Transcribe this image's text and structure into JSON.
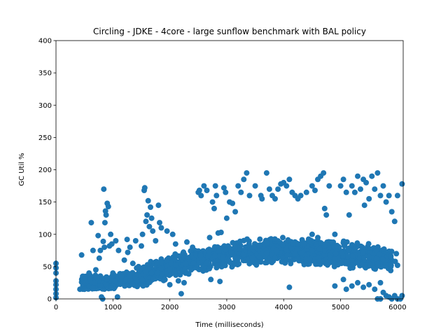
{
  "chart_data": {
    "type": "scatter",
    "title": "Circling - JDKE - 4core -  large sunflow benchmark with BAL policy",
    "xlabel": "Time (milliseconds)",
    "ylabel": "GC Util %",
    "xlim": [
      0,
      6100
    ],
    "ylim": [
      0,
      400
    ],
    "xticks": [
      "0",
      "1000",
      "2000",
      "3000",
      "4000",
      "5000",
      "6000"
    ],
    "yticks": [
      "0",
      "50",
      "100",
      "150",
      "200",
      "250",
      "300",
      "350",
      "400"
    ],
    "grid": false,
    "legend": "none",
    "marker_color": "#1f77b4",
    "series": [
      {
        "points": [
          [
            0,
            55
          ],
          [
            0,
            48
          ],
          [
            0,
            40
          ],
          [
            0,
            28
          ],
          [
            0,
            22
          ],
          [
            0,
            15
          ],
          [
            0,
            8
          ],
          [
            0,
            2
          ],
          [
            420,
            15
          ],
          [
            450,
            68
          ],
          [
            500,
            15
          ],
          [
            520,
            25
          ],
          [
            560,
            28
          ],
          [
            580,
            40
          ],
          [
            600,
            30
          ],
          [
            620,
            118
          ],
          [
            650,
            75
          ],
          [
            680,
            25
          ],
          [
            700,
            45
          ],
          [
            720,
            32
          ],
          [
            740,
            98
          ],
          [
            760,
            63
          ],
          [
            780,
            75
          ],
          [
            800,
            3
          ],
          [
            820,
            0
          ],
          [
            830,
            89
          ],
          [
            840,
            170
          ],
          [
            850,
            80
          ],
          [
            860,
            118
          ],
          [
            870,
            136
          ],
          [
            880,
            130
          ],
          [
            900,
            148
          ],
          [
            920,
            143
          ],
          [
            940,
            82
          ],
          [
            960,
            100
          ],
          [
            980,
            85
          ],
          [
            1000,
            40
          ],
          [
            1050,
            90
          ],
          [
            1080,
            3
          ],
          [
            1100,
            75
          ],
          [
            1150,
            35
          ],
          [
            1200,
            60
          ],
          [
            1250,
            92
          ],
          [
            1260,
            72
          ],
          [
            1300,
            80
          ],
          [
            1350,
            55
          ],
          [
            1400,
            90
          ],
          [
            1450,
            50
          ],
          [
            1500,
            82
          ],
          [
            1520,
            100
          ],
          [
            1550,
            168
          ],
          [
            1560,
            172
          ],
          [
            1580,
            120
          ],
          [
            1600,
            130
          ],
          [
            1620,
            152
          ],
          [
            1640,
            112
          ],
          [
            1660,
            142
          ],
          [
            1680,
            125
          ],
          [
            1700,
            105
          ],
          [
            1750,
            90
          ],
          [
            1800,
            145
          ],
          [
            1820,
            118
          ],
          [
            1850,
            110
          ],
          [
            1950,
            105
          ],
          [
            2000,
            22
          ],
          [
            2050,
            100
          ],
          [
            2100,
            85
          ],
          [
            2150,
            28
          ],
          [
            2200,
            8
          ],
          [
            2250,
            25
          ],
          [
            2300,
            88
          ],
          [
            2400,
            80
          ],
          [
            2500,
            165
          ],
          [
            2520,
            168
          ],
          [
            2550,
            160
          ],
          [
            2600,
            175
          ],
          [
            2650,
            168
          ],
          [
            2700,
            95
          ],
          [
            2720,
            30
          ],
          [
            2750,
            150
          ],
          [
            2780,
            140
          ],
          [
            2800,
            175
          ],
          [
            2820,
            160
          ],
          [
            2850,
            102
          ],
          [
            2880,
            27
          ],
          [
            2900,
            103
          ],
          [
            2950,
            172
          ],
          [
            2980,
            165
          ],
          [
            3000,
            125
          ],
          [
            3050,
            150
          ],
          [
            3100,
            148
          ],
          [
            3150,
            135
          ],
          [
            3200,
            175
          ],
          [
            3250,
            165
          ],
          [
            3300,
            185
          ],
          [
            3350,
            195
          ],
          [
            3400,
            160
          ],
          [
            3500,
            175
          ],
          [
            3600,
            160
          ],
          [
            3620,
            155
          ],
          [
            3700,
            195
          ],
          [
            3750,
            170
          ],
          [
            3800,
            160
          ],
          [
            3850,
            155
          ],
          [
            3900,
            170
          ],
          [
            3950,
            178
          ],
          [
            4000,
            180
          ],
          [
            4050,
            175
          ],
          [
            4100,
            185
          ],
          [
            4150,
            165
          ],
          [
            4200,
            160
          ],
          [
            4250,
            155
          ],
          [
            4300,
            160
          ],
          [
            4400,
            165
          ],
          [
            4500,
            175
          ],
          [
            4550,
            168
          ],
          [
            4600,
            185
          ],
          [
            4650,
            190
          ],
          [
            4700,
            195
          ],
          [
            4720,
            140
          ],
          [
            4750,
            130
          ],
          [
            4800,
            175
          ],
          [
            4900,
            20
          ],
          [
            5000,
            175
          ],
          [
            5050,
            185
          ],
          [
            5100,
            165
          ],
          [
            5150,
            130
          ],
          [
            5200,
            175
          ],
          [
            5250,
            165
          ],
          [
            5300,
            190
          ],
          [
            5350,
            170
          ],
          [
            5400,
            185
          ],
          [
            5420,
            145
          ],
          [
            5450,
            180
          ],
          [
            5500,
            155
          ],
          [
            5550,
            190
          ],
          [
            5600,
            170
          ],
          [
            5650,
            195
          ],
          [
            5700,
            160
          ],
          [
            5750,
            175
          ],
          [
            5800,
            150
          ],
          [
            5850,
            160
          ],
          [
            5900,
            135
          ],
          [
            5950,
            120
          ],
          [
            6000,
            160
          ],
          [
            6080,
            178
          ],
          [
            4900,
            100
          ],
          [
            5050,
            30
          ],
          [
            5100,
            15
          ],
          [
            5200,
            20
          ],
          [
            5300,
            25
          ],
          [
            5400,
            18
          ],
          [
            5500,
            22
          ],
          [
            5600,
            15
          ],
          [
            5700,
            25
          ],
          [
            5750,
            10
          ],
          [
            5800,
            5
          ],
          [
            5900,
            0
          ],
          [
            5950,
            5
          ],
          [
            6000,
            0
          ],
          [
            6050,
            0
          ],
          [
            6080,
            5
          ],
          [
            5850,
            3
          ],
          [
            5650,
            0
          ],
          [
            5700,
            0
          ],
          [
            5960,
            58
          ],
          [
            6000,
            52
          ],
          [
            5980,
            70
          ],
          [
            4100,
            18
          ],
          [
            4500,
            100
          ],
          [
            4600,
            95
          ]
        ],
        "dense_band": {
          "x": [
            1000,
            1500,
            2000,
            2500,
            3000,
            3500,
            4000,
            4500,
            5000,
            5500,
            5900
          ],
          "y_center": [
            28,
            35,
            50,
            60,
            68,
            73,
            75,
            72,
            70,
            65,
            60
          ],
          "y_spread": [
            10,
            18,
            20,
            20,
            22,
            22,
            22,
            22,
            22,
            22,
            18
          ]
        }
      }
    ]
  }
}
